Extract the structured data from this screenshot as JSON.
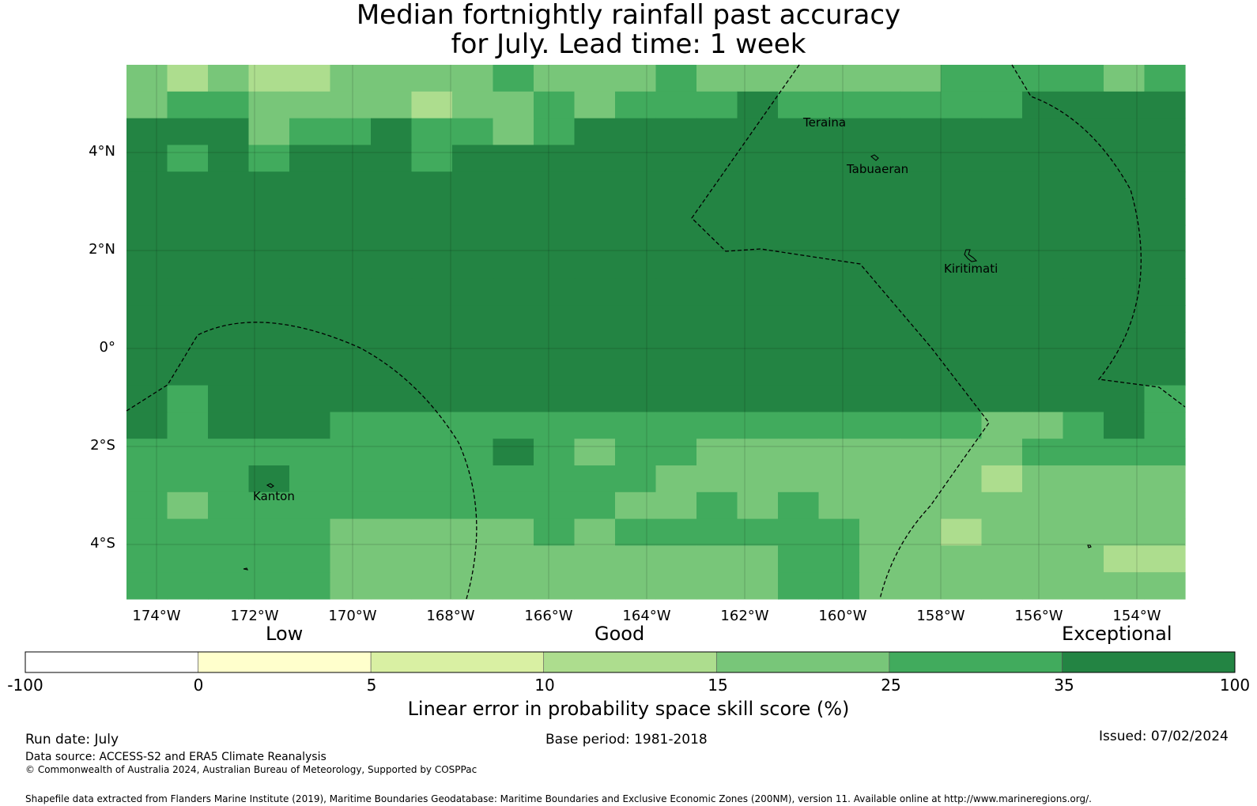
{
  "title": {
    "line1": "Median fortnightly rainfall past accuracy",
    "line2": "for July. Lead time: 1 week"
  },
  "map": {
    "lat_labels": [
      "4°N",
      "2°N",
      "0°",
      "2°S",
      "4°S"
    ],
    "lon_labels": [
      "174°W",
      "172°W",
      "170°W",
      "168°W",
      "166°W",
      "164°W",
      "162°W",
      "160°W",
      "158°W",
      "156°W",
      "154°W"
    ],
    "islands": [
      "Teraina",
      "Tabuaeran",
      "Kiritimati",
      "Kanton"
    ],
    "colors": {
      "exceptional": "#238443",
      "good_high": "#41ab5d",
      "good": "#78c679",
      "good_low": "#addd8e"
    }
  },
  "legend": {
    "categories": [
      "Low",
      "Good",
      "Exceptional"
    ],
    "ticks": [
      "-100",
      "0",
      "5",
      "10",
      "15",
      "25",
      "35",
      "100"
    ],
    "bins": [
      {
        "from": -100,
        "to": 0,
        "color": "#ffffff"
      },
      {
        "from": 0,
        "to": 5,
        "color": "#ffffcc"
      },
      {
        "from": 5,
        "to": 10,
        "color": "#d9f0a3"
      },
      {
        "from": 10,
        "to": 15,
        "color": "#addd8e"
      },
      {
        "from": 15,
        "to": 25,
        "color": "#78c679"
      },
      {
        "from": 25,
        "to": 35,
        "color": "#41ab5d"
      },
      {
        "from": 35,
        "to": 100,
        "color": "#238443"
      }
    ],
    "title": "Linear error in probability space skill score (%)"
  },
  "footer": {
    "run_date": "Run date: July",
    "base_period": "Base period: 1981-2018",
    "issued": "Issued: 07/02/2024",
    "data_source": "Data source: ACCESS-S2 and ERA5 Climate Reanalysis",
    "copyright": "© Commonwealth of Australia 2024, Australian Bureau of Meteorology, Supported by COSPPac",
    "shapefile": "Shapefile data extracted from Flanders Marine Institute (2019), Maritime Boundaries Geodatabase: Maritime Boundaries and Exclusive Economic Zones (200NM), version 11. Available online at http://www.marineregions.org/."
  }
}
